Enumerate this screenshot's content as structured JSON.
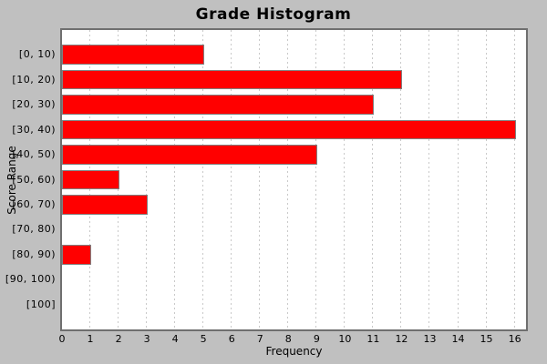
{
  "chart_data": {
    "type": "bar",
    "orientation": "horizontal",
    "title": "Grade Histogram",
    "xlabel": "Frequency",
    "ylabel": "Score Range",
    "categories": [
      "[0, 10)",
      "[10, 20)",
      "[20, 30)",
      "[30, 40)",
      "[40, 50)",
      "[50, 60)",
      "[60, 70)",
      "[70, 80)",
      "[80, 90)",
      "[90, 100)",
      "[100]"
    ],
    "values": [
      5,
      12,
      11,
      16,
      9,
      2,
      3,
      0,
      1,
      0,
      0
    ],
    "xticks": [
      0,
      1,
      2,
      3,
      4,
      5,
      6,
      7,
      8,
      9,
      10,
      11,
      12,
      13,
      14,
      15,
      16
    ],
    "xlim": [
      0,
      16.4
    ],
    "grid": "vertical-dashed",
    "legend": "none",
    "colors": {
      "background": "#C0C0C0",
      "plot_background": "#FFFFFF",
      "bar_fill": "#FF0000",
      "bar_outline": "#808080",
      "gridline": "#C9C9C9",
      "plot_border": "#6F6F6F",
      "text": "#000000"
    }
  }
}
